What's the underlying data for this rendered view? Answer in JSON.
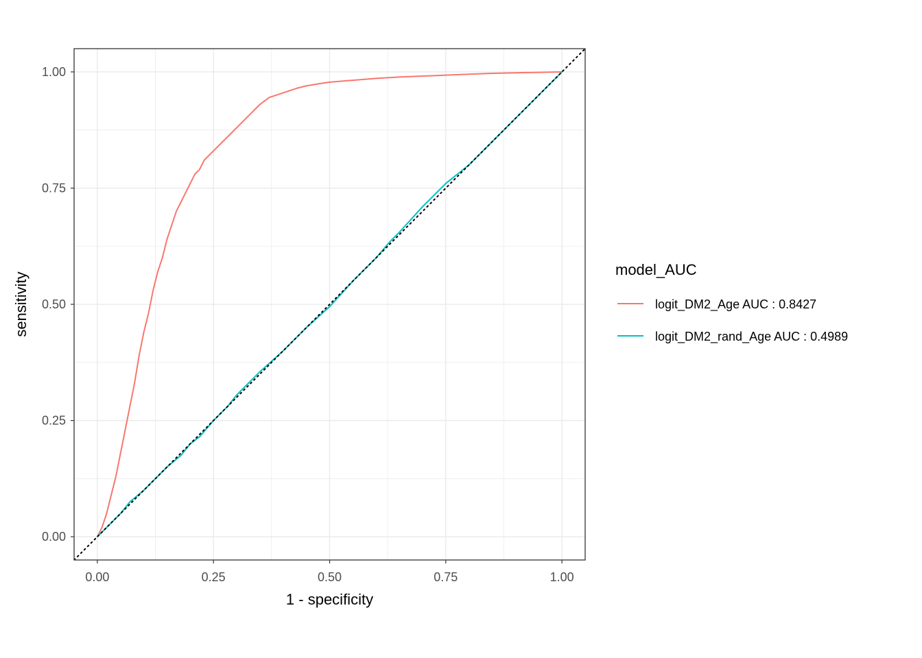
{
  "chart_data": {
    "type": "line",
    "xlabel": "1 - specificity",
    "ylabel": "sensitivity",
    "xlim": [
      -0.05,
      1.05
    ],
    "ylim": [
      -0.05,
      1.05
    ],
    "xticks": [
      "0.00",
      "0.25",
      "0.50",
      "0.75",
      "1.00"
    ],
    "yticks": [
      "0.00",
      "0.25",
      "0.50",
      "0.75",
      "1.00"
    ],
    "grid": true,
    "reference_line": {
      "style": "dotted",
      "color": "#000000",
      "from": [
        -0.05,
        -0.05
      ],
      "to": [
        1.05,
        1.05
      ]
    },
    "legend": {
      "title": "model_AUC",
      "placement": "right"
    },
    "series": [
      {
        "name": "logit_DM2_Age AUC : 0.8427",
        "color": "#F8766D",
        "x": [
          0.0,
          0.01,
          0.02,
          0.03,
          0.04,
          0.05,
          0.06,
          0.07,
          0.08,
          0.09,
          0.1,
          0.11,
          0.12,
          0.13,
          0.14,
          0.15,
          0.16,
          0.17,
          0.18,
          0.19,
          0.2,
          0.21,
          0.22,
          0.23,
          0.24,
          0.25,
          0.27,
          0.3,
          0.33,
          0.35,
          0.37,
          0.4,
          0.43,
          0.45,
          0.48,
          0.5,
          0.55,
          0.6,
          0.65,
          0.7,
          0.75,
          0.8,
          0.85,
          0.9,
          0.95,
          1.0
        ],
        "y": [
          0.0,
          0.02,
          0.05,
          0.09,
          0.13,
          0.18,
          0.23,
          0.28,
          0.33,
          0.39,
          0.44,
          0.48,
          0.53,
          0.57,
          0.6,
          0.64,
          0.67,
          0.7,
          0.72,
          0.74,
          0.76,
          0.78,
          0.79,
          0.81,
          0.82,
          0.83,
          0.85,
          0.88,
          0.91,
          0.93,
          0.945,
          0.955,
          0.965,
          0.97,
          0.975,
          0.978,
          0.982,
          0.986,
          0.989,
          0.991,
          0.993,
          0.995,
          0.997,
          0.998,
          0.999,
          1.0
        ]
      },
      {
        "name": "logit_DM2_rand_Age AUC : 0.4989",
        "color": "#00BFC4",
        "x": [
          0.0,
          0.05,
          0.07,
          0.1,
          0.15,
          0.18,
          0.2,
          0.22,
          0.25,
          0.28,
          0.3,
          0.35,
          0.4,
          0.45,
          0.5,
          0.55,
          0.6,
          0.63,
          0.65,
          0.7,
          0.75,
          0.8,
          0.85,
          0.9,
          0.95,
          1.0
        ],
        "y": [
          0.0,
          0.05,
          0.075,
          0.1,
          0.15,
          0.175,
          0.2,
          0.215,
          0.25,
          0.28,
          0.305,
          0.355,
          0.4,
          0.45,
          0.495,
          0.55,
          0.6,
          0.635,
          0.655,
          0.71,
          0.76,
          0.8,
          0.85,
          0.9,
          0.95,
          1.0
        ]
      }
    ]
  }
}
